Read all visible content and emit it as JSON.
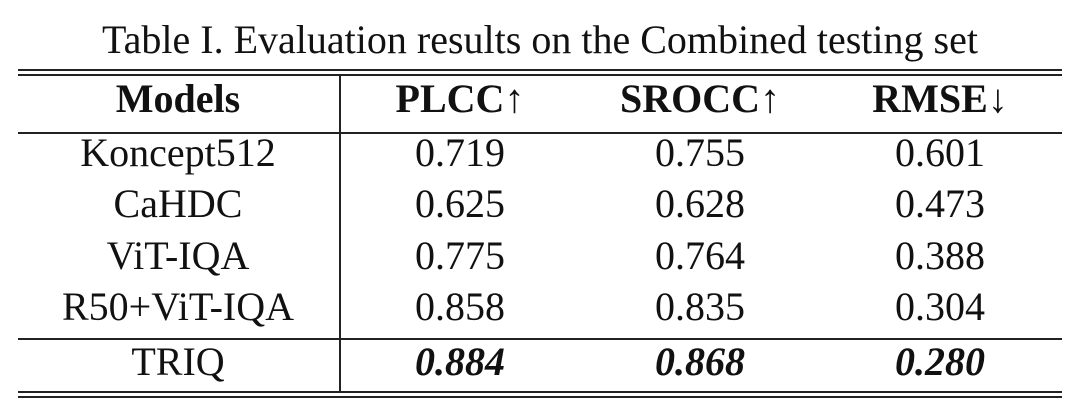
{
  "table": {
    "caption": "Table I. Evaluation results on the Combined testing set",
    "header": [
      "Models",
      "PLCC↑",
      "SROCC↑",
      "RMSE↓"
    ],
    "rows": [
      [
        "Koncept512",
        "0.719",
        "0.755",
        "0.601"
      ],
      [
        "CaHDC",
        "0.625",
        "0.628",
        "0.473"
      ],
      [
        "ViT-IQA",
        "0.775",
        "0.764",
        "0.388"
      ],
      [
        "R50+ViT-IQA",
        "0.858",
        "0.835",
        "0.304"
      ],
      [
        "TRIQ",
        "0.884",
        "0.868",
        "0.280"
      ]
    ]
  }
}
